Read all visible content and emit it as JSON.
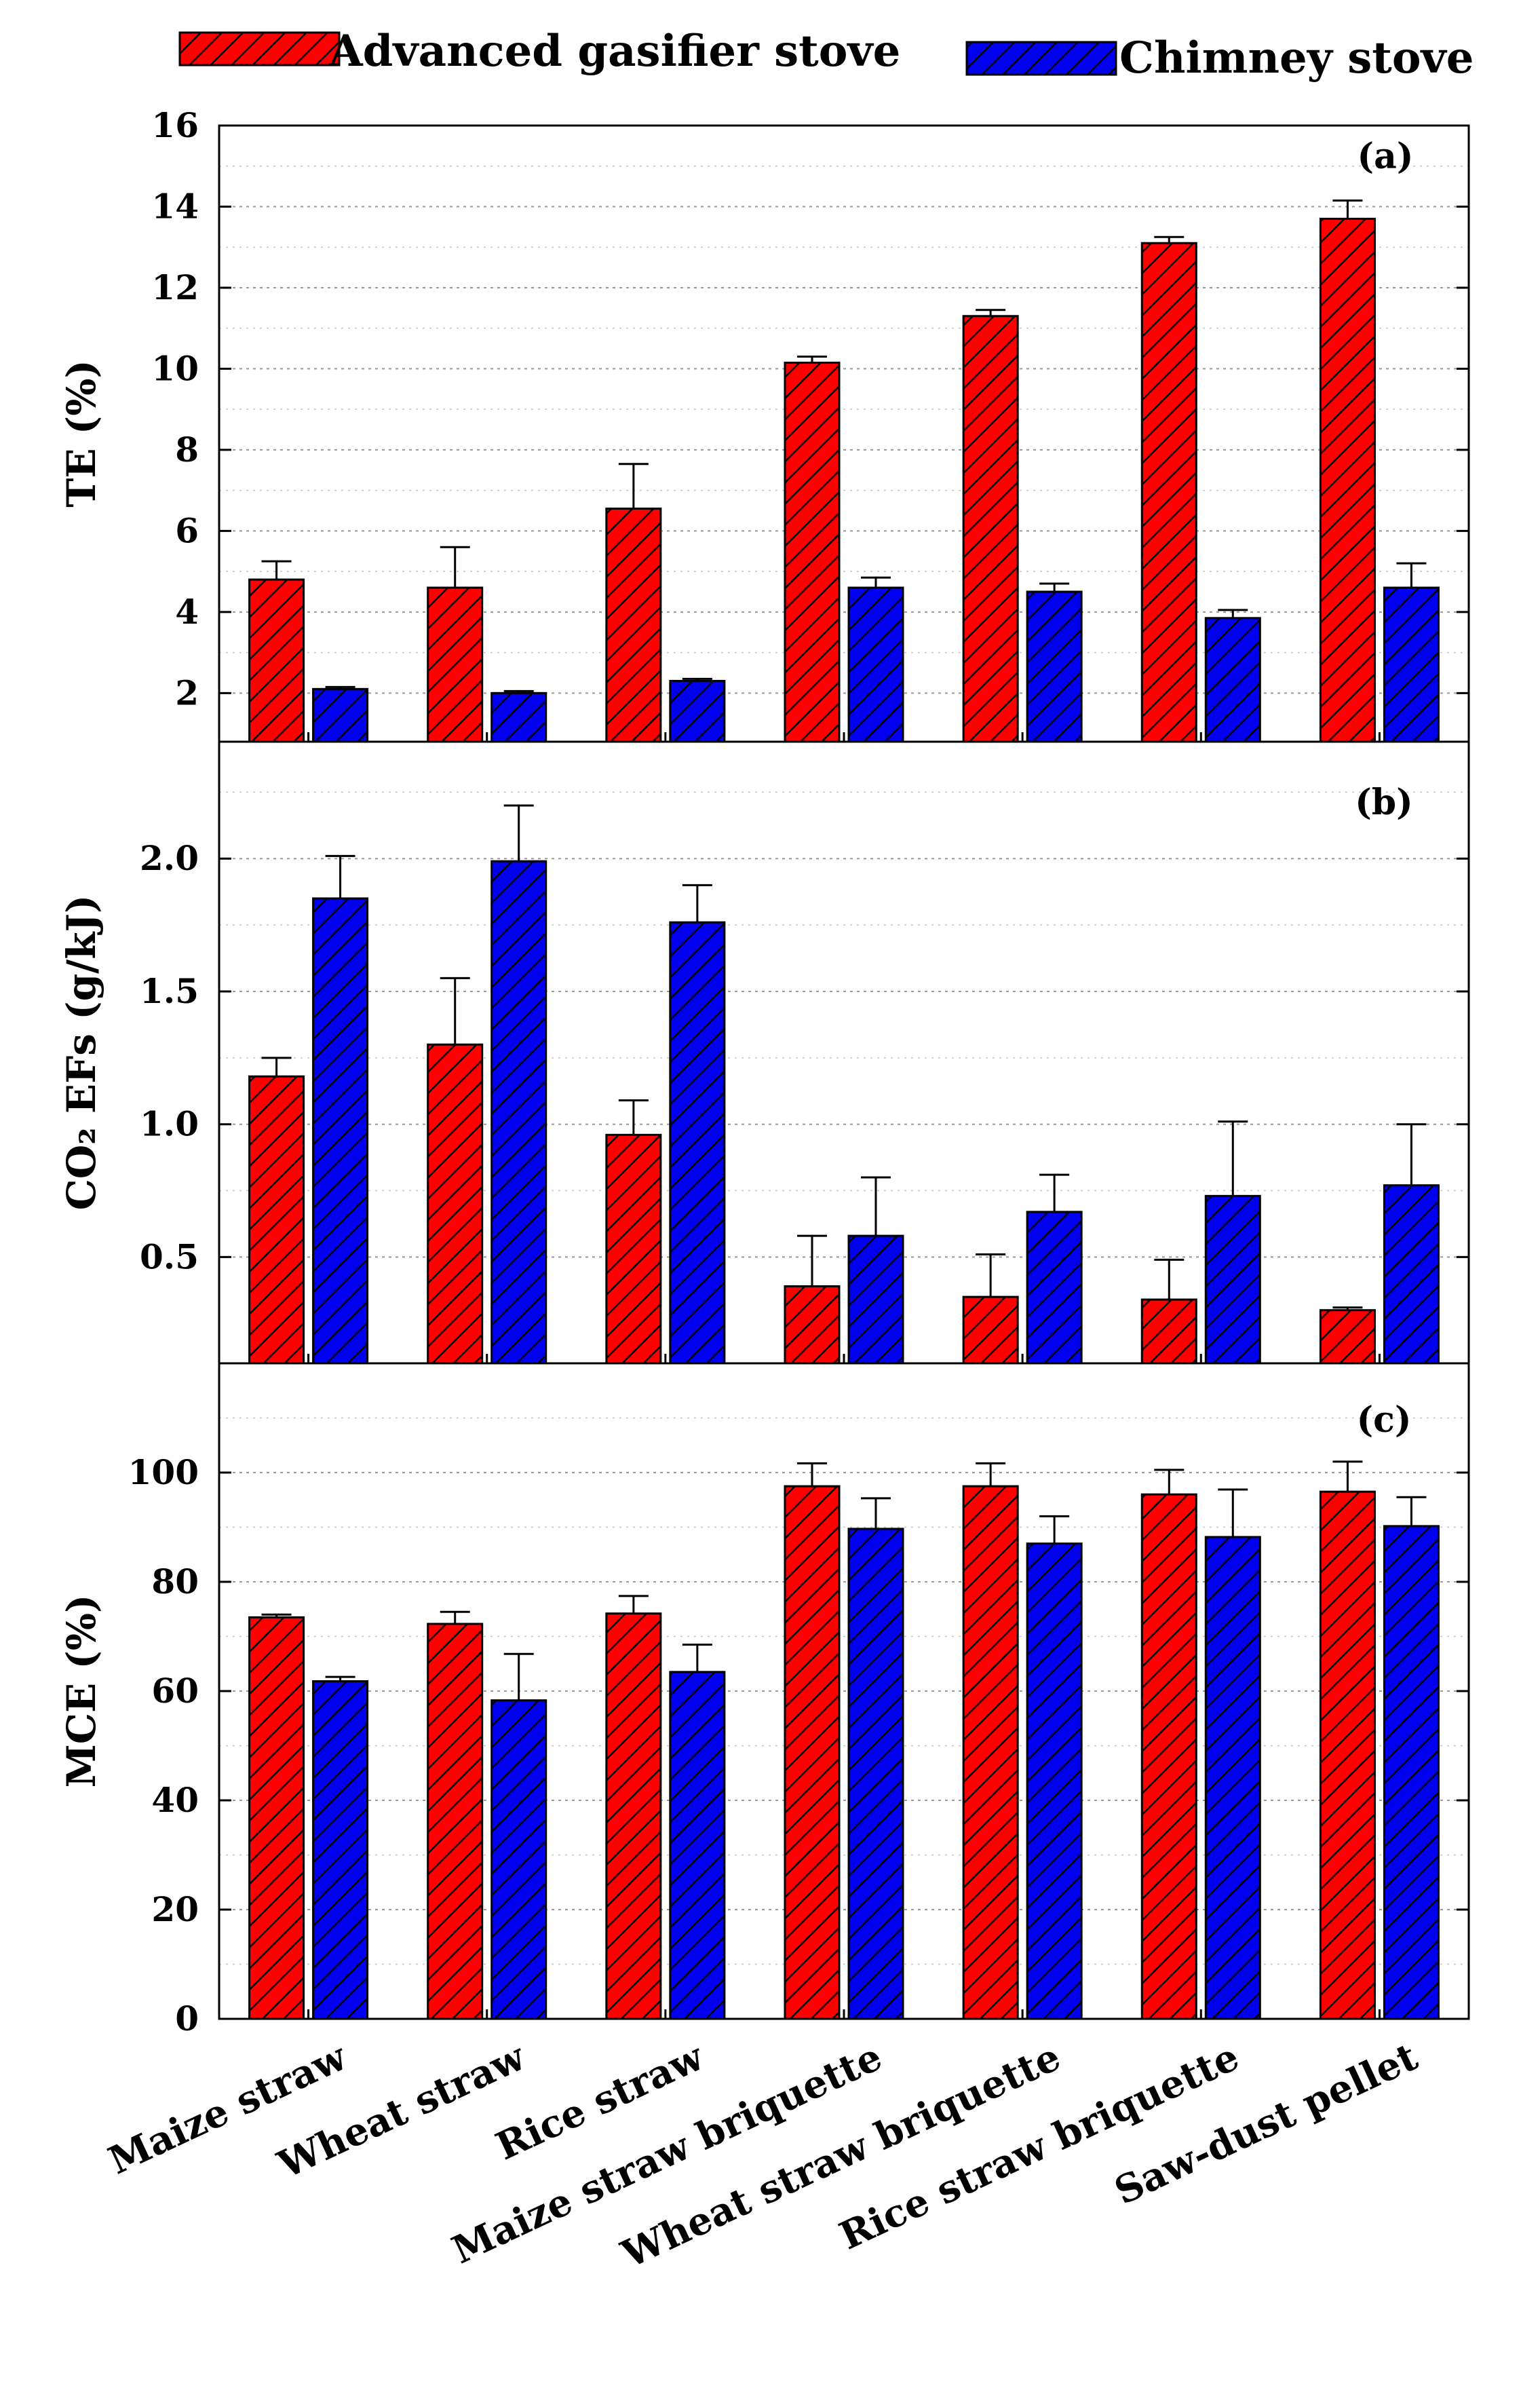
{
  "legend": {
    "series_labels": [
      "Advanced gasifier stove",
      "Chimney stove"
    ]
  },
  "colors": {
    "gasifier": "#ff0000",
    "chimney": "#0000ee",
    "hatch": "#000000"
  },
  "chart_data": [
    {
      "type": "bar",
      "panel": "(a)",
      "title": "",
      "xlabel": "",
      "ylabel": "TE (%)",
      "ylim": [
        0.8,
        16
      ],
      "yticks": [
        2,
        4,
        6,
        8,
        10,
        12,
        14,
        16
      ],
      "ytick_labels": [
        "2",
        "4",
        "6",
        "8",
        "10",
        "12",
        "14",
        "16"
      ],
      "grid": true,
      "categories": [
        "Maize straw",
        "Wheat straw",
        "Rice straw",
        "Maize straw briquette",
        "Wheat straw briquette",
        "Rice straw briquette",
        "Saw-dust  pellet"
      ],
      "series": [
        {
          "name": "Advanced gasifier stove",
          "values": [
            4.8,
            4.6,
            6.55,
            10.15,
            11.3,
            13.1,
            13.7
          ],
          "errors": [
            0.45,
            1.0,
            1.1,
            0.15,
            0.15,
            0.15,
            0.45
          ]
        },
        {
          "name": "Chimney stove",
          "values": [
            2.1,
            2.0,
            2.3,
            4.6,
            4.5,
            3.85,
            4.6
          ],
          "errors": [
            0.05,
            0.05,
            0.05,
            0.25,
            0.2,
            0.2,
            0.6
          ]
        }
      ]
    },
    {
      "type": "bar",
      "panel": "(b)",
      "title": "",
      "xlabel": "",
      "ylabel": "CO₂ EFs (g/kJ)",
      "ylim": [
        0.1,
        2.44
      ],
      "yticks": [
        0.5,
        1.0,
        1.5,
        2.0
      ],
      "ytick_labels": [
        "0.5",
        "1.0",
        "1.5",
        "2.0"
      ],
      "grid": true,
      "categories": [
        "Maize straw",
        "Wheat straw",
        "Rice straw",
        "Maize straw briquette",
        "Wheat straw briquette",
        "Rice straw briquette",
        "Saw-dust  pellet"
      ],
      "series": [
        {
          "name": "Advanced gasifier stove",
          "values": [
            1.18,
            1.3,
            0.96,
            0.39,
            0.35,
            0.34,
            0.3
          ],
          "errors": [
            0.07,
            0.25,
            0.13,
            0.19,
            0.16,
            0.15,
            0.01
          ]
        },
        {
          "name": "Chimney stove",
          "values": [
            1.85,
            1.99,
            1.76,
            0.58,
            0.67,
            0.73,
            0.77
          ],
          "errors": [
            0.16,
            0.21,
            0.14,
            0.22,
            0.14,
            0.28,
            0.23
          ]
        }
      ]
    },
    {
      "type": "bar",
      "panel": "(c)",
      "title": "",
      "xlabel": "",
      "ylabel": "MCE (%)",
      "ylim": [
        0,
        120
      ],
      "yticks": [
        0,
        20,
        40,
        60,
        80,
        100
      ],
      "ytick_labels": [
        "0",
        "20",
        "40",
        "60",
        "80",
        "100"
      ],
      "grid": true,
      "categories": [
        "Maize straw",
        "Wheat straw",
        "Rice straw",
        "Maize straw briquette",
        "Wheat straw briquette",
        "Rice straw briquette",
        "Saw-dust  pellet"
      ],
      "series": [
        {
          "name": "Advanced gasifier stove",
          "values": [
            73.5,
            72.3,
            74.2,
            97.5,
            97.5,
            96,
            96.5
          ],
          "errors": [
            0.5,
            2.2,
            3.2,
            4.2,
            4.2,
            4.5,
            5.5
          ]
        },
        {
          "name": "Chimney stove",
          "values": [
            61.8,
            58.3,
            63.5,
            89.7,
            87,
            88.2,
            90.2
          ],
          "errors": [
            0.8,
            8.5,
            5,
            5.6,
            5,
            8.7,
            5.3
          ]
        }
      ]
    }
  ]
}
